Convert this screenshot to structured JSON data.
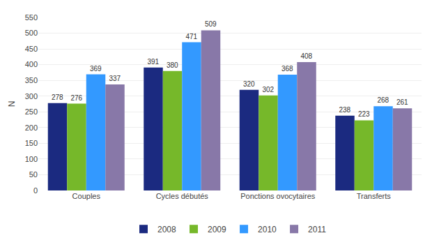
{
  "chart_data": {
    "type": "bar",
    "ylabel": "N",
    "categories": [
      "Couples",
      "Cycles débutés",
      "Ponctions ovocytaires",
      "Transferts"
    ],
    "series": [
      {
        "name": "2008",
        "color": "#1B2A80",
        "values": [
          278,
          391,
          320,
          238
        ]
      },
      {
        "name": "2009",
        "color": "#76B82A",
        "values": [
          276,
          380,
          302,
          223
        ]
      },
      {
        "name": "2010",
        "color": "#3399FF",
        "values": [
          369,
          471,
          368,
          268
        ]
      },
      {
        "name": "2011",
        "color": "#8878A8",
        "values": [
          337,
          509,
          408,
          261
        ]
      }
    ],
    "ylim": [
      0,
      550
    ],
    "yticks": [
      0,
      50,
      100,
      150,
      200,
      250,
      300,
      350,
      400,
      450,
      500,
      550
    ],
    "grid": true,
    "legend": "bottom",
    "data_labels": true
  }
}
